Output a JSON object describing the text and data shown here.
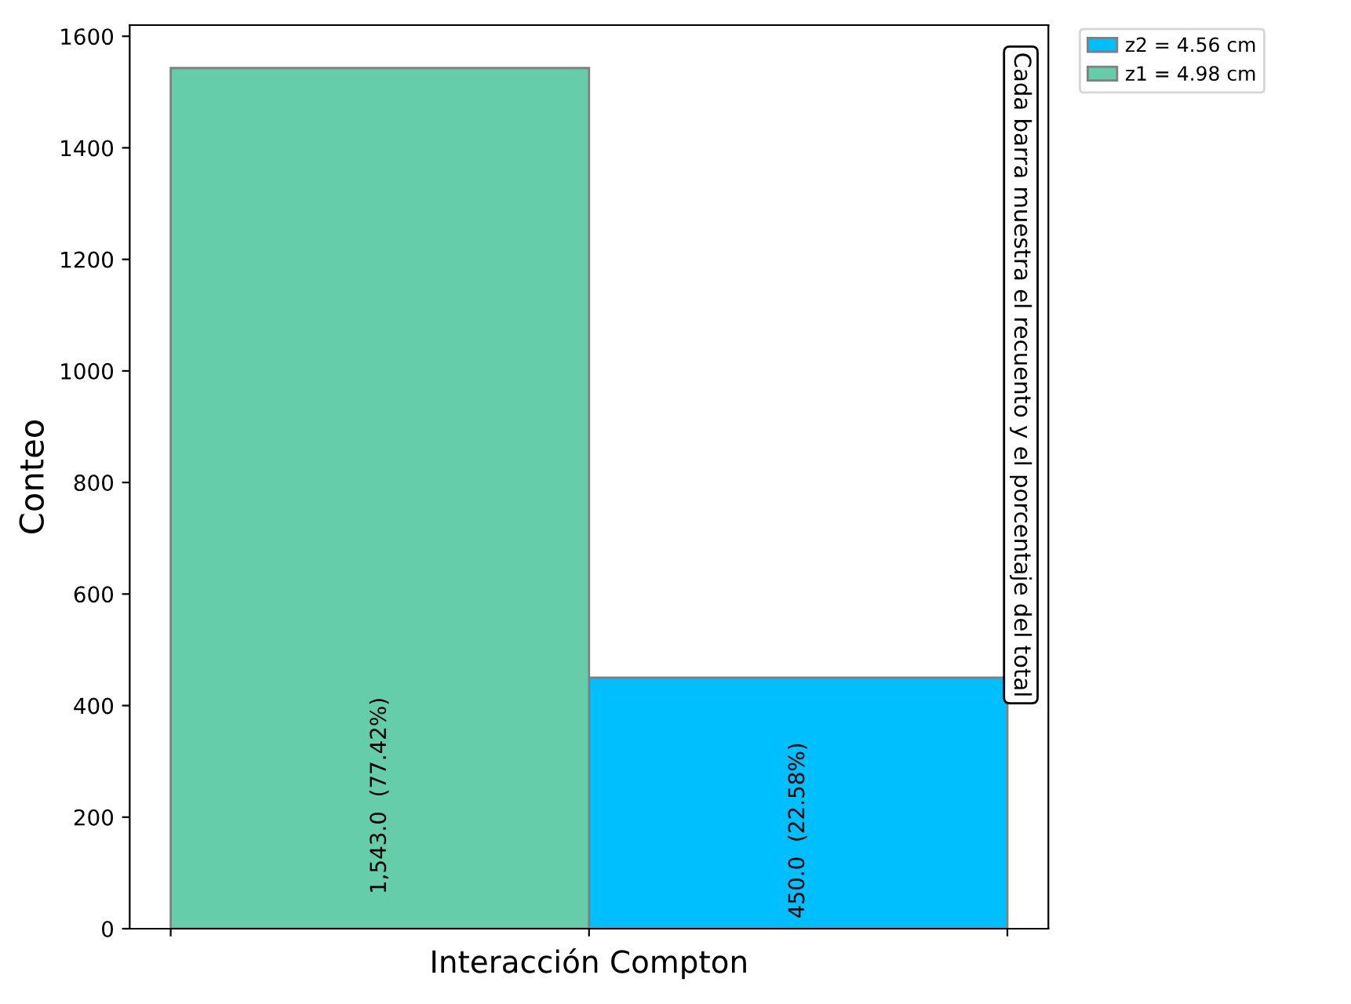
{
  "chart_data": {
    "type": "bar",
    "xlabel": "Interacción Compton",
    "ylabel": "Conteo",
    "categories": [
      null,
      null
    ],
    "series": [
      {
        "name": "z2 = 4.56 cm",
        "color": "#00bfff",
        "values": [
          null,
          450
        ],
        "value_labels": [
          null,
          "450.0  (22.58%)"
        ]
      },
      {
        "name": "z1 = 4.98 cm",
        "color": "#66cdaa",
        "values": [
          1543,
          null
        ],
        "value_labels": [
          "1,543.0  (77.42%)",
          null
        ]
      }
    ],
    "ylim": [
      0,
      1620
    ],
    "yticks": [
      0,
      200,
      400,
      600,
      800,
      1000,
      1200,
      1400,
      1600
    ],
    "annotations": [
      "Cada barra muestra el recuento y el porcentaje del total"
    ],
    "legend": "outside top right",
    "grid": false
  }
}
